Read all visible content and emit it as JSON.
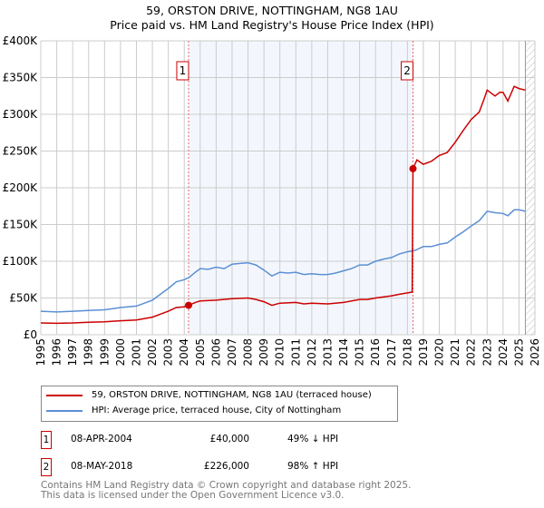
{
  "chart_data": {
    "type": "line",
    "title": "59, ORSTON DRIVE, NOTTINGHAM, NG8 1AU",
    "subtitle": "Price paid vs. HM Land Registry's House Price Index (HPI)",
    "xlim": [
      1995,
      2026
    ],
    "ylim": [
      0,
      400000
    ],
    "x_ticks": [
      "1995",
      "1996",
      "1997",
      "1998",
      "1999",
      "2000",
      "2001",
      "2002",
      "2003",
      "2004",
      "2005",
      "2006",
      "2007",
      "2008",
      "2009",
      "2010",
      "2011",
      "2012",
      "2013",
      "2014",
      "2015",
      "2016",
      "2017",
      "2018",
      "2019",
      "2020",
      "2021",
      "2022",
      "2023",
      "2024",
      "2025",
      "2026"
    ],
    "y_ticks": [
      {
        "v": 0,
        "label": "£0"
      },
      {
        "v": 50000,
        "label": "£50K"
      },
      {
        "v": 100000,
        "label": "£100K"
      },
      {
        "v": 150000,
        "label": "£150K"
      },
      {
        "v": 200000,
        "label": "£200K"
      },
      {
        "v": 250000,
        "label": "£250K"
      },
      {
        "v": 300000,
        "label": "£300K"
      },
      {
        "v": 350000,
        "label": "£350K"
      },
      {
        "v": 400000,
        "label": "£400K"
      }
    ],
    "grid": true,
    "shaded_range": [
      2004.27,
      2018.35
    ],
    "forecast_hatch_from": 2025.4,
    "series": [
      {
        "name": "59, ORSTON DRIVE, NOTTINGHAM, NG8 1AU (terraced house)",
        "color": "#cc0000",
        "x": [
          1995,
          1996,
          1997,
          1998,
          1999,
          2000,
          2001,
          2002,
          2002.5,
          2003,
          2003.5,
          2004,
          2004.27,
          2004.7,
          2005,
          2006,
          2007,
          2008,
          2008.5,
          2009,
          2009.5,
          2010,
          2011,
          2011.5,
          2012,
          2013,
          2014,
          2015,
          2015.5,
          2016,
          2017,
          2017.5,
          2018.3,
          2018.35,
          2018.6,
          2019,
          2019.5,
          2020,
          2020.5,
          2021,
          2021.5,
          2022,
          2022.5,
          2022.8,
          2023,
          2023.5,
          2023.8,
          2024,
          2024.3,
          2024.7,
          2025,
          2025.4
        ],
        "y": [
          16000,
          15500,
          16000,
          17000,
          17500,
          19000,
          20000,
          24000,
          28000,
          32000,
          37000,
          38000,
          40000,
          44000,
          46000,
          47000,
          49000,
          50000,
          48000,
          45000,
          40000,
          43000,
          44000,
          42000,
          43000,
          42000,
          44000,
          48000,
          48000,
          50000,
          53000,
          55000,
          58000,
          226000,
          238000,
          232000,
          236000,
          244000,
          248000,
          262000,
          278000,
          293000,
          303000,
          320000,
          333000,
          325000,
          330000,
          330000,
          318000,
          338000,
          335000,
          333000
        ]
      },
      {
        "name": "HPI: Average price, terraced house, City of Nottingham",
        "color": "#5b8fd4",
        "x": [
          1995,
          1996,
          1997,
          1998,
          1999,
          2000,
          2001,
          2002,
          2002.5,
          2003,
          2003.5,
          2004,
          2004.3,
          2004.7,
          2005,
          2005.5,
          2006,
          2006.5,
          2007,
          2007.5,
          2008,
          2008.5,
          2009,
          2009.5,
          2010,
          2010.5,
          2011,
          2011.5,
          2012,
          2012.5,
          2013,
          2013.5,
          2014,
          2014.5,
          2015,
          2015.5,
          2016,
          2016.5,
          2017,
          2017.5,
          2018,
          2018.5,
          2019,
          2019.5,
          2020,
          2020.5,
          2021,
          2021.5,
          2022,
          2022.5,
          2023,
          2023.5,
          2024,
          2024.3,
          2024.7,
          2025,
          2025.4
        ],
        "y": [
          32000,
          31000,
          32000,
          33000,
          34000,
          37000,
          39000,
          47000,
          55000,
          63000,
          72000,
          75000,
          78000,
          85000,
          90000,
          89000,
          92000,
          90000,
          96000,
          97000,
          98000,
          95000,
          88000,
          80000,
          85000,
          84000,
          85000,
          82000,
          83000,
          82000,
          82000,
          84000,
          87000,
          90000,
          95000,
          95000,
          100000,
          103000,
          105000,
          110000,
          113000,
          115000,
          120000,
          120000,
          123000,
          125000,
          133000,
          140000,
          148000,
          155000,
          168000,
          166000,
          165000,
          162000,
          170000,
          170000,
          168000
        ]
      }
    ],
    "annotations": [
      {
        "label": "1",
        "x": 2004.27,
        "y": 40000
      },
      {
        "label": "2",
        "x": 2018.35,
        "y": 226000
      }
    ]
  },
  "legend": {
    "items": [
      {
        "label": "59, ORSTON DRIVE, NOTTINGHAM, NG8 1AU (terraced house)",
        "color": "#cc0000"
      },
      {
        "label": "HPI: Average price, terraced house, City of Nottingham",
        "color": "#5b8fd4"
      }
    ]
  },
  "sales": [
    {
      "num": "1",
      "date": "08-APR-2004",
      "price": "£40,000",
      "hpi": "49% ↓ HPI"
    },
    {
      "num": "2",
      "date": "08-MAY-2018",
      "price": "£226,000",
      "hpi": "98% ↑ HPI"
    }
  ],
  "footer": {
    "line1": "Contains HM Land Registry data © Crown copyright and database right 2025.",
    "line2": "This data is licensed under the Open Government Licence v3.0."
  }
}
